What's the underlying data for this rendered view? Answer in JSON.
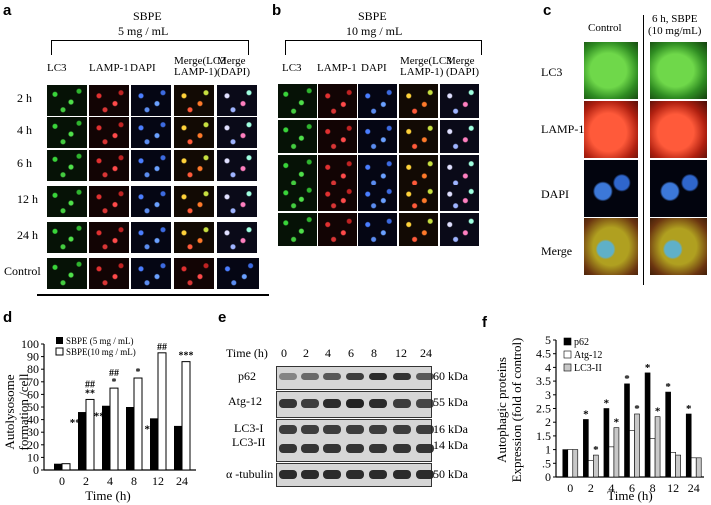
{
  "panel_a": {
    "label": "a",
    "header": "SBPE",
    "conc": "5 mg / mL",
    "cols": [
      "LC3",
      "LAMP-1",
      "DAPI",
      "Merge(LC3\nLAMP-1)",
      "Merge\n(DAPI)"
    ],
    "rows": [
      "2 h",
      "4 h",
      "6 h",
      "12 h",
      "24 h",
      "Control"
    ]
  },
  "panel_b": {
    "label": "b",
    "header": "SBPE",
    "conc": "10 mg / mL",
    "cols": [
      "LC3",
      "LAMP-1",
      "DAPI",
      "Merge(LC3\nLAMP-1)",
      "Merge\n(DAPI)"
    ]
  },
  "panel_c": {
    "label": "c",
    "col_control": "Control",
    "col_treat": "6 h, SBPE\n(10 mg/mL)",
    "rows": [
      "LC3",
      "LAMP-1",
      "DAPI",
      "Merge"
    ]
  },
  "panel_d": {
    "label": "d"
  },
  "panel_e": {
    "label": "e",
    "time_title": "Time (h)",
    "times": [
      "0",
      "2",
      "4",
      "6",
      "8",
      "12",
      "24"
    ],
    "rows": [
      {
        "name": "p62",
        "kda": "60 kDa"
      },
      {
        "name": "Atg-12",
        "kda": "55 kDa"
      },
      {
        "name": "LC3-I\nLC3-II",
        "kda": "16 kDa\n14 kDa"
      },
      {
        "name": "α -tubulin",
        "kda": "50 kDa"
      }
    ]
  },
  "panel_f": {
    "label": "f"
  },
  "colors": {
    "black": "#000000",
    "white": "#ffffff",
    "gray": "#c8c8c8"
  },
  "chart_data": [
    {
      "type": "bar",
      "panel": "d",
      "categories": [
        "0",
        "2",
        "4",
        "8",
        "12",
        "24"
      ],
      "series": [
        {
          "name": "SBPE (5 mg / mL)",
          "values": [
            5,
            46,
            51,
            50,
            41,
            35
          ]
        },
        {
          "name": "SBPE(10 mg / mL)",
          "values": [
            5,
            56,
            65,
            73,
            93,
            86
          ]
        }
      ],
      "annotations_s1": [
        "",
        "***",
        "***",
        "*",
        "**",
        "*"
      ],
      "annotations_s2": [
        "",
        "##\n**",
        "##\n*",
        "*",
        "##",
        "***"
      ],
      "xlabel": "Time (h)",
      "ylabel": "Autolysosome\nformation /cell",
      "ylim": [
        0,
        100
      ],
      "yticks": [
        0,
        10,
        20,
        30,
        40,
        50,
        60,
        70,
        80,
        90,
        100
      ],
      "legend": "top-left"
    },
    {
      "type": "bar",
      "panel": "f",
      "categories": [
        "0",
        "2",
        "4",
        "6",
        "8",
        "12",
        "24"
      ],
      "series": [
        {
          "name": "p62",
          "values": [
            1.0,
            2.1,
            2.5,
            3.4,
            3.8,
            3.1,
            2.3
          ]
        },
        {
          "name": "Atg-12",
          "values": [
            1.0,
            0.6,
            1.1,
            1.7,
            1.4,
            0.9,
            0.7
          ]
        },
        {
          "name": "LC3-II",
          "values": [
            1.0,
            0.8,
            1.8,
            2.3,
            2.2,
            0.8,
            0.7
          ]
        }
      ],
      "annotations": [
        "",
        "*",
        "*",
        "*",
        "*",
        "*",
        "*"
      ],
      "xlabel": "Time (h)",
      "ylabel": "Autophagic proteins\nExpression (fold of control)",
      "ylim": [
        0,
        5
      ],
      "yticks": [
        0,
        0.5,
        1,
        1.5,
        2,
        2.5,
        3,
        3.5,
        4,
        4.5,
        5
      ],
      "ytick_labels": [
        "0",
        ".5",
        "1",
        "1.5",
        "2",
        "2.5",
        "3",
        "3.5",
        "4",
        "4.5",
        "5"
      ],
      "legend": "top-left"
    }
  ]
}
